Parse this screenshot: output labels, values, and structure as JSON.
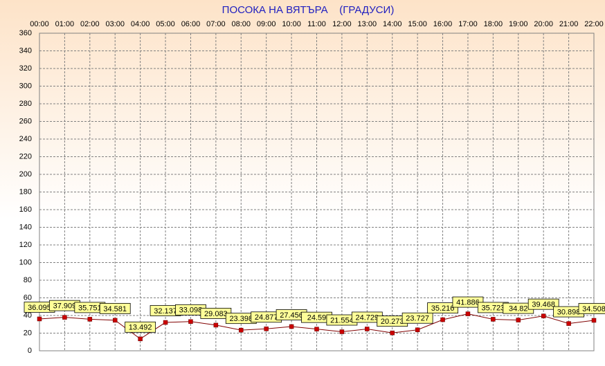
{
  "chart_data": {
    "type": "line",
    "title": "ПОСОКА НА ВЯТЪРА    (ГРАДУСИ)",
    "categories": [
      "00:00",
      "01:00",
      "02:00",
      "03:00",
      "04:00",
      "05:00",
      "06:00",
      "07:00",
      "08:00",
      "09:00",
      "10:00",
      "11:00",
      "12:00",
      "13:00",
      "14:00",
      "15:00",
      "16:00",
      "17:00",
      "18:00",
      "19:00",
      "20:00",
      "21:00",
      "22:00"
    ],
    "values": [
      36.095,
      37.909,
      35.751,
      34.581,
      13.492,
      32.137,
      33.098,
      29.083,
      23.398,
      24.877,
      27.456,
      24.59,
      21.554,
      24.729,
      20.273,
      23.727,
      35.216,
      41.886,
      35.723,
      34.82,
      39.468,
      30.898,
      34.508
    ],
    "color": "#cc0000",
    "ylim": [
      0,
      360
    ],
    "yticks": [
      0,
      20,
      40,
      60,
      80,
      100,
      120,
      140,
      160,
      180,
      200,
      220,
      240,
      260,
      280,
      300,
      320,
      340,
      360
    ],
    "grid": true
  }
}
